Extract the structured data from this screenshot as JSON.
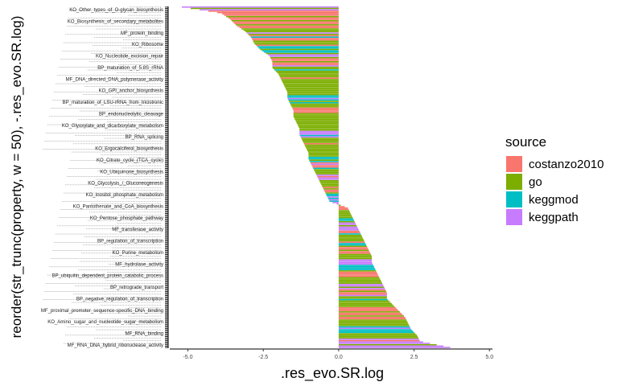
{
  "chart_data": {
    "type": "bar",
    "orientation": "horizontal",
    "xlabel": ".res_evo.SR.log",
    "ylabel": "reorder(str_trunc(property, w = 50), -.res_evo.SR.log)",
    "xlim": [
      -5.6,
      5.1
    ],
    "x_ticks": [
      {
        "value": -5.0,
        "label": "-5.0"
      },
      {
        "value": -2.5,
        "label": "-2.5"
      },
      {
        "value": 0.0,
        "label": "0.0"
      },
      {
        "value": 2.5,
        "label": "2.5"
      },
      {
        "value": 5.0,
        "label": "5.0"
      }
    ],
    "grid": false,
    "legend": {
      "title": "source",
      "position": "right",
      "entries": [
        {
          "name": "costanzo2010",
          "color": "#F8766D"
        },
        {
          "name": "go",
          "color": "#7CAE00"
        },
        {
          "name": "keggmod",
          "color": "#00BFC4"
        },
        {
          "name": "keggpath",
          "color": "#C77CFF"
        }
      ]
    },
    "category_labels": [
      "KO_Other_types_of_O-glycan_biosynthesis",
      "KO_Biosynthesis_of_secondary_metabolites",
      "MF_protein_binding",
      "KO_Ribosome",
      "KO_Nucleotide_excision_repair",
      "BP_maturation_of_5.8S_rRNA",
      "MF_DNA_directed_DNA_polymerase_activity",
      "KO_GPI_anchor_biosynthesis",
      "BP_maturation_of_LSU-rRNA_from_tricistronic",
      "BP_endonucleolytic_cleavage",
      "KO_Glyoxylate_and_dicarboxylate_metabolism",
      "BP_RNA_splicing",
      "KO_Ergocalciferol_biosynthesis",
      "KO_Citrate_cycle_(TCA_cycle)",
      "KO_Ubiquinone_biosynthesis",
      "KO_Glycolysis_/_Gluconeogenesis",
      "KO_Inositol_phosphate_metabolism",
      "KO_Pantothenate_and_CoA_biosynthesis",
      "KO_Pentose_phosphate_pathway",
      "MF_transferase_activity",
      "BP_regulation_of_transcription",
      "KO_Purine_metabolism",
      "MF_hydrolase_activity",
      "BP_ubiquitin_dependent_protein_catabolic_process",
      "BP_retrograde_transport",
      "BP_negative_regulation_of_transcription",
      "MF_proximal_promoter_sequence-specific_DNA_binding",
      "KO_Amino_sugar_and_nucleotide_sugar_metabolism",
      "MF_RNA_binding",
      "MF_RNA_DNA_hybrid_ribonuclease_activity"
    ],
    "summary": {
      "min_value": -5.2,
      "max_value": 3.7,
      "approx_bar_count": 250,
      "negative_color_order_note": "bars sorted descending from most negative (top) to most positive (bottom)"
    },
    "series_by_source": {
      "costanzo2010": [
        -3.9,
        -3.6,
        -3.4,
        -2.9,
        -2.2,
        -1.5,
        -0.9,
        -0.5,
        0.3,
        0.7,
        1.0,
        1.3,
        1.6,
        2.0,
        2.2
      ],
      "go": [
        -3.1,
        -2.8,
        -2.2,
        -2.0,
        -1.9,
        -1.8,
        -1.7,
        -1.6,
        -1.5,
        -1.4,
        -1.3,
        -1.2,
        -1.1,
        -1.0,
        -0.8,
        -0.6,
        0.4,
        0.8,
        1.1,
        1.4,
        1.6,
        1.8,
        2.3,
        2.6
      ],
      "keggmod": [
        -2.6,
        -1.7,
        -1.0,
        -0.4,
        0.5,
        0.9,
        1.2,
        2.4
      ],
      "keggpath": [
        -5.2,
        -2.3,
        -1.3,
        -0.7,
        -0.3,
        0.6,
        1.1,
        1.5,
        2.7,
        3.7
      ]
    }
  }
}
